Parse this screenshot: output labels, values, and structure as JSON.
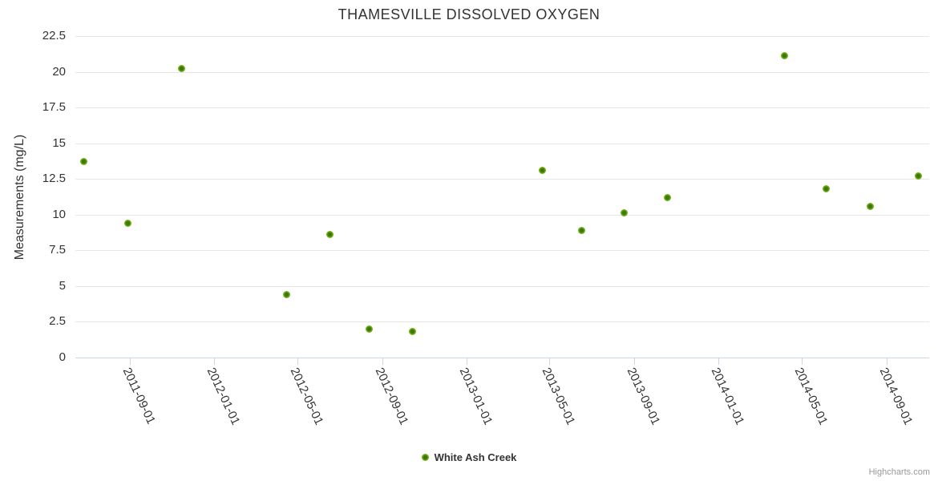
{
  "chart_data": {
    "type": "scatter",
    "title": "THAMESVILLE DISSOLVED OXYGEN",
    "xlabel": "",
    "ylabel": "Measurements (mg/L)",
    "ylim": [
      0,
      22.5
    ],
    "yticks": [
      0,
      2.5,
      5,
      7.5,
      10,
      12.5,
      15,
      17.5,
      20,
      22.5
    ],
    "xtick_labels": [
      "2011-09-01",
      "2012-01-01",
      "2012-05-01",
      "2012-09-01",
      "2013-01-01",
      "2013-05-01",
      "2013-09-01",
      "2014-01-01",
      "2014-05-01",
      "2014-09-01"
    ],
    "x_axis_range": [
      "2011-06-14",
      "2014-11-02"
    ],
    "grid": true,
    "legend_position": "bottom",
    "series": [
      {
        "name": "White Ash Creek",
        "color": "#72b31c",
        "marker_core_color": "#3e7400",
        "points": [
          {
            "date": "2011-06-26",
            "value": 13.7
          },
          {
            "date": "2011-08-29",
            "value": 9.4
          },
          {
            "date": "2011-11-15",
            "value": 20.2
          },
          {
            "date": "2012-04-15",
            "value": 4.4
          },
          {
            "date": "2012-06-17",
            "value": 8.6
          },
          {
            "date": "2012-08-13",
            "value": 2.0
          },
          {
            "date": "2012-10-14",
            "value": 1.8
          },
          {
            "date": "2013-04-21",
            "value": 13.1
          },
          {
            "date": "2013-06-16",
            "value": 8.9
          },
          {
            "date": "2013-08-17",
            "value": 10.1
          },
          {
            "date": "2013-10-19",
            "value": 11.2
          },
          {
            "date": "2014-04-06",
            "value": 21.1
          },
          {
            "date": "2014-06-06",
            "value": 11.8
          },
          {
            "date": "2014-08-09",
            "value": 10.6
          },
          {
            "date": "2014-10-17",
            "value": 12.7
          }
        ]
      }
    ],
    "colors": {
      "grid": "#e6e6e6",
      "axis": "#ccd6eb",
      "title_text": "#333333",
      "label_text": "#333333",
      "credits_text": "#999999"
    },
    "credits": "Highcharts.com"
  }
}
